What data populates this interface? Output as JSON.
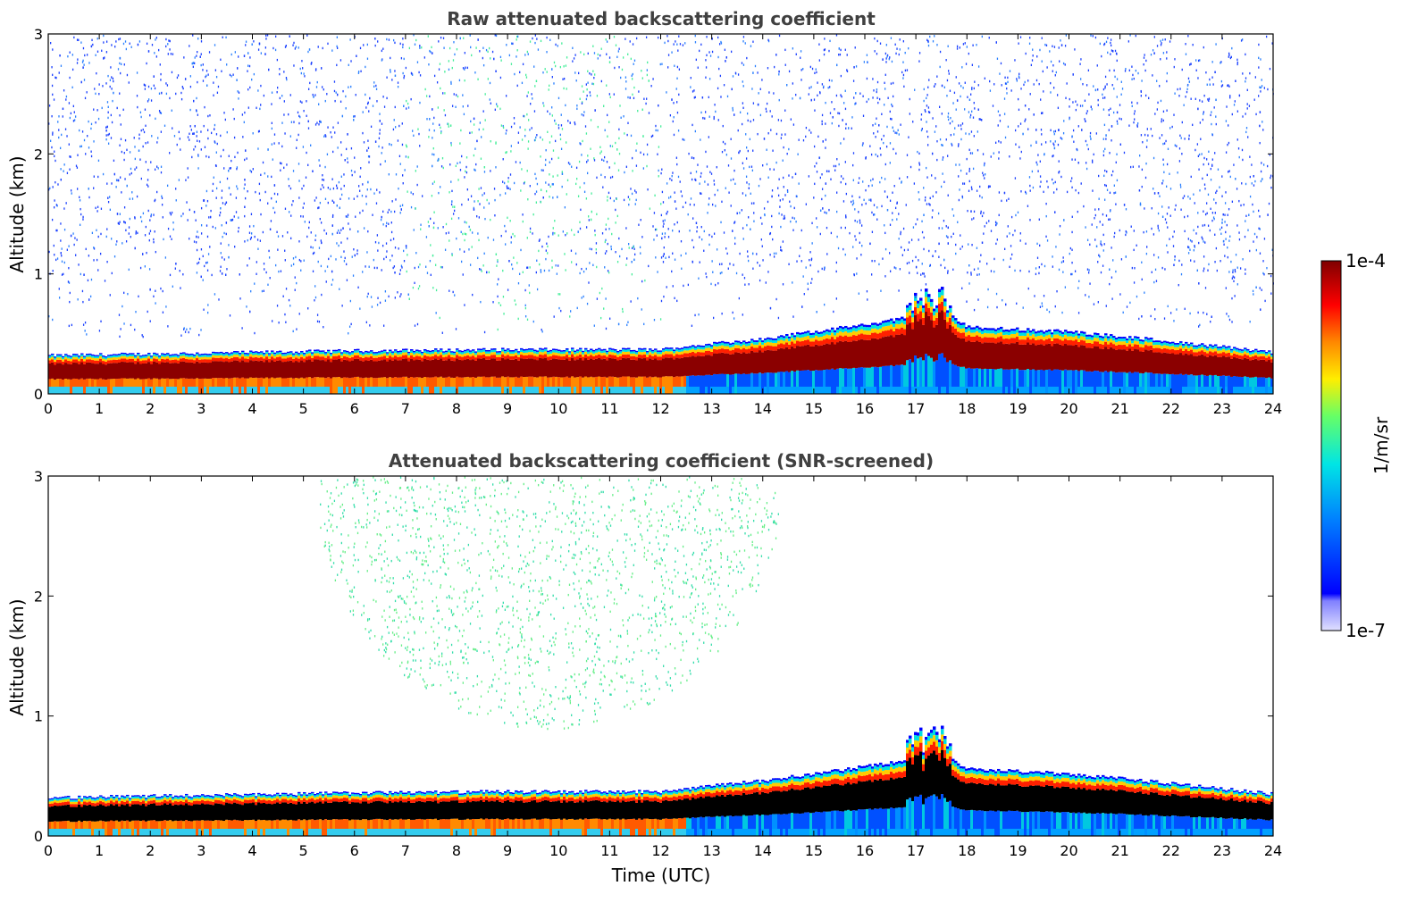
{
  "chart_data": [
    {
      "type": "heatmap",
      "title": "Raw attenuated backscattering coefficient",
      "xlabel": "",
      "ylabel": "Altitude (km)",
      "xlim": [
        0,
        24
      ],
      "ylim": [
        0,
        3
      ],
      "xticks": [
        "0",
        "1",
        "2",
        "3",
        "4",
        "5",
        "6",
        "7",
        "8",
        "9",
        "10",
        "11",
        "12",
        "13",
        "14",
        "15",
        "16",
        "17",
        "18",
        "19",
        "20",
        "21",
        "22",
        "23",
        "24"
      ],
      "yticks": [
        "0",
        "1",
        "2",
        "3"
      ],
      "variant": "raw",
      "boundary_layer_top_km": [
        [
          0,
          0.32
        ],
        [
          3,
          0.34
        ],
        [
          6,
          0.36
        ],
        [
          9,
          0.37
        ],
        [
          12,
          0.37
        ],
        [
          13,
          0.42
        ],
        [
          14,
          0.46
        ],
        [
          15,
          0.52
        ],
        [
          16,
          0.58
        ],
        [
          17,
          0.65
        ],
        [
          17.6,
          0.68
        ],
        [
          18,
          0.56
        ],
        [
          20,
          0.52
        ],
        [
          22,
          0.44
        ],
        [
          24,
          0.35
        ]
      ]
    },
    {
      "type": "heatmap",
      "title": "Attenuated backscattering coefficient (SNR-screened)",
      "xlabel": "Time (UTC)",
      "ylabel": "Altitude (km)",
      "xlim": [
        0,
        24
      ],
      "ylim": [
        0,
        3
      ],
      "xticks": [
        "0",
        "1",
        "2",
        "3",
        "4",
        "5",
        "6",
        "7",
        "8",
        "9",
        "10",
        "11",
        "12",
        "13",
        "14",
        "15",
        "16",
        "17",
        "18",
        "19",
        "20",
        "21",
        "22",
        "23",
        "24"
      ],
      "yticks": [
        "0",
        "1",
        "2",
        "3"
      ],
      "variant": "screened",
      "boundary_layer_top_km": [
        [
          0,
          0.32
        ],
        [
          3,
          0.34
        ],
        [
          6,
          0.36
        ],
        [
          9,
          0.37
        ],
        [
          12,
          0.37
        ],
        [
          13,
          0.42
        ],
        [
          14,
          0.46
        ],
        [
          15,
          0.52
        ],
        [
          16,
          0.58
        ],
        [
          17,
          0.65
        ],
        [
          17.6,
          0.68
        ],
        [
          18,
          0.56
        ],
        [
          20,
          0.52
        ],
        [
          22,
          0.44
        ],
        [
          24,
          0.35
        ]
      ]
    }
  ],
  "colorbar": {
    "max_label": "1e-4",
    "min_label": "1e-7",
    "units_label": "1/m/sr",
    "colors": {
      "low": "#e0e0ff",
      "blue": "#0000ff",
      "cyan": "#00e5e5",
      "green": "#66ff66",
      "yellow": "#ffee00",
      "orange": "#ff8800",
      "red": "#ff0000",
      "darkred": "#7f0000"
    }
  }
}
